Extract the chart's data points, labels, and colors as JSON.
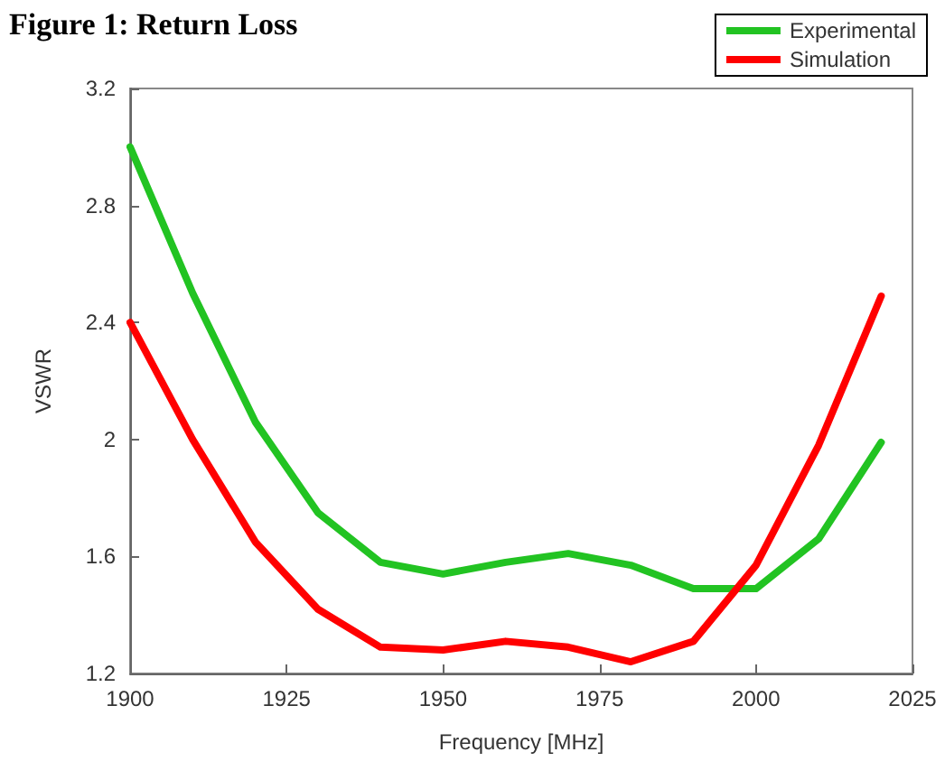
{
  "chart_data": {
    "type": "line",
    "title": "Figure 1: Return Loss",
    "xlabel": "Frequency [MHz]",
    "ylabel": "VSWR",
    "x": [
      1900,
      1910,
      1920,
      1930,
      1940,
      1950,
      1960,
      1970,
      1980,
      1990,
      2000,
      2010,
      2020
    ],
    "series": [
      {
        "name": "Experimental",
        "color": "#22c322",
        "values": [
          3.0,
          2.5,
          2.06,
          1.75,
          1.58,
          1.54,
          1.58,
          1.61,
          1.57,
          1.49,
          1.49,
          1.66,
          1.99
        ]
      },
      {
        "name": "Simulation",
        "color": "#ff0000",
        "values": [
          2.4,
          2.0,
          1.65,
          1.42,
          1.29,
          1.28,
          1.31,
          1.29,
          1.24,
          1.31,
          1.57,
          1.98,
          2.49
        ]
      }
    ],
    "xlim": [
      1900,
      2025
    ],
    "xticks": [
      1900,
      1925,
      1950,
      1975,
      2000,
      2025
    ],
    "ylim": [
      1.2,
      3.2
    ],
    "yticks": [
      1.2,
      1.6,
      2,
      2.4,
      2.8,
      3.2
    ],
    "grid": false,
    "legend": "top right",
    "marker": "none",
    "line_style": "solid"
  }
}
